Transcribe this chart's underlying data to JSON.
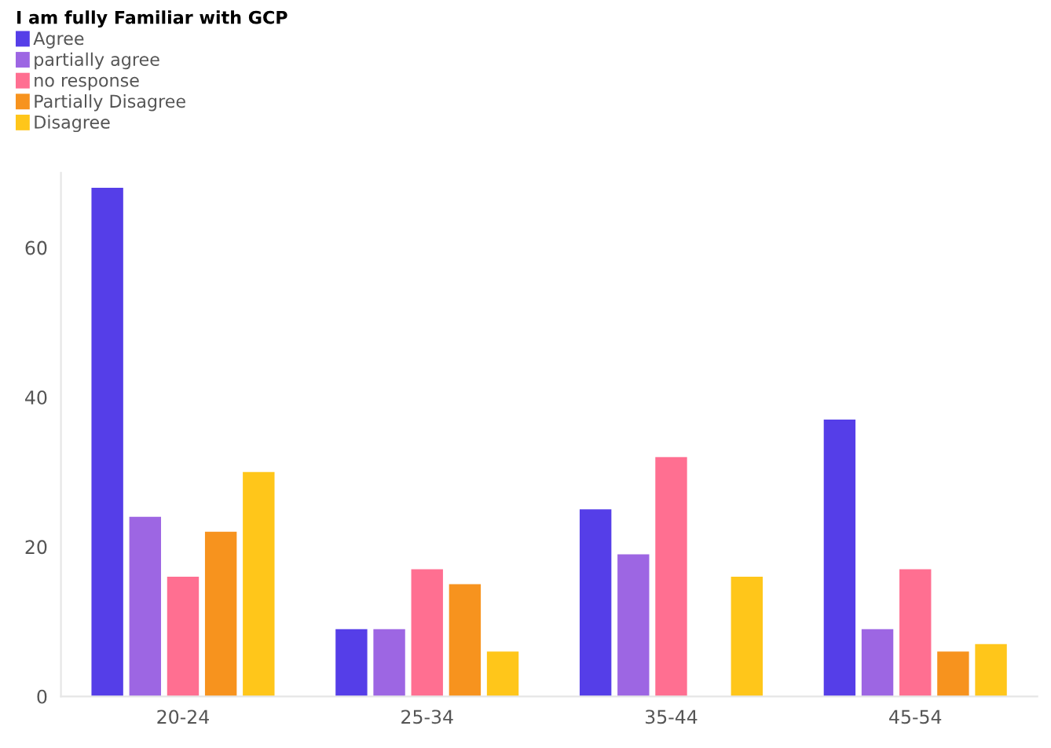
{
  "chart_data": {
    "type": "bar",
    "legend_title": "I am fully Familiar with GCP",
    "categories": [
      "20-24",
      "25-34",
      "35-44",
      "45-54"
    ],
    "series": [
      {
        "name": "Agree",
        "color": "#553ee8",
        "values": [
          68,
          9,
          25,
          37
        ]
      },
      {
        "name": "partially agree",
        "color": "#9d66e3",
        "values": [
          24,
          9,
          19,
          9
        ]
      },
      {
        "name": "no response",
        "color": "#ff6f91",
        "values": [
          16,
          17,
          32,
          17
        ]
      },
      {
        "name": "Partially Disagree",
        "color": "#f7931e",
        "values": [
          22,
          15,
          null,
          6
        ]
      },
      {
        "name": "Disagree",
        "color": "#ffc61a",
        "values": [
          30,
          6,
          16,
          7
        ]
      }
    ],
    "ylim": [
      0,
      70
    ],
    "yticks": [
      0,
      20,
      40,
      60
    ],
    "grid": false,
    "legend": "top left"
  }
}
